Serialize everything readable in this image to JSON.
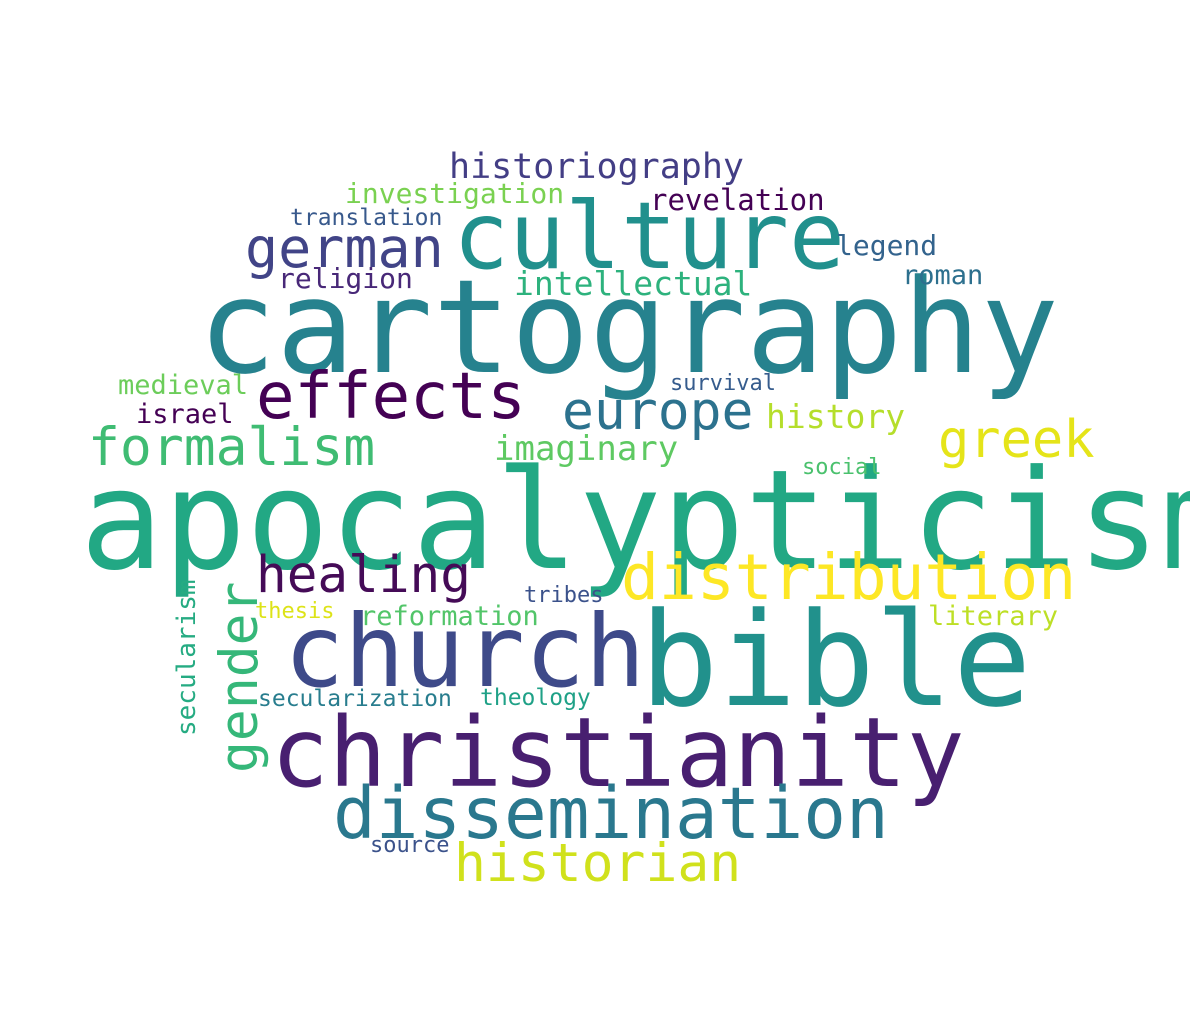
{
  "words": [
    {
      "key": "cartography",
      "text": "cartography",
      "color": "#26828e"
    },
    {
      "key": "apocalypticism",
      "text": "apocalypticism",
      "color": "#22a884"
    },
    {
      "key": "culture",
      "text": "culture",
      "color": "#21908d"
    },
    {
      "key": "bible",
      "text": "bible",
      "color": "#21918c"
    },
    {
      "key": "christianity",
      "text": "christianity",
      "color": "#481f70"
    },
    {
      "key": "church",
      "text": "church",
      "color": "#3e4a89"
    },
    {
      "key": "dissemination",
      "text": "dissemination",
      "color": "#2a788e"
    },
    {
      "key": "distribution",
      "text": "distribution",
      "color": "#fde725"
    },
    {
      "key": "effects",
      "text": "effects",
      "color": "#440154"
    },
    {
      "key": "historian",
      "text": "historian",
      "color": "#d0e11c"
    },
    {
      "key": "europe",
      "text": "europe",
      "color": "#2c728e"
    },
    {
      "key": "formalism",
      "text": "formalism",
      "color": "#3fbc73"
    },
    {
      "key": "german",
      "text": "german",
      "color": "#414487"
    },
    {
      "key": "healing",
      "text": "healing",
      "color": "#450b57"
    },
    {
      "key": "greek",
      "text": "greek",
      "color": "#e5e419"
    },
    {
      "key": "gender",
      "text": "gender",
      "color": "#35b779"
    },
    {
      "key": "historiography",
      "text": "historiography",
      "color": "#433e85"
    },
    {
      "key": "intellectual",
      "text": "intellectual",
      "color": "#2db27d"
    },
    {
      "key": "imaginary",
      "text": "imaginary",
      "color": "#5ec962"
    },
    {
      "key": "history",
      "text": "history",
      "color": "#b5de2b"
    },
    {
      "key": "revelation",
      "text": "revelation",
      "color": "#440154"
    },
    {
      "key": "investigation",
      "text": "investigation",
      "color": "#7ad151"
    },
    {
      "key": "legend",
      "text": "legend",
      "color": "#33638d"
    },
    {
      "key": "religion",
      "text": "religion",
      "color": "#482878"
    },
    {
      "key": "roman",
      "text": "roman",
      "color": "#2d708e"
    },
    {
      "key": "translation",
      "text": "translation",
      "color": "#38598c"
    },
    {
      "key": "medieval",
      "text": "medieval",
      "color": "#6ccd5a"
    },
    {
      "key": "israel",
      "text": "israel",
      "color": "#440154"
    },
    {
      "key": "survival",
      "text": "survival",
      "color": "#365c8d"
    },
    {
      "key": "social",
      "text": "social",
      "color": "#4ac16d"
    },
    {
      "key": "reformation",
      "text": "reformation",
      "color": "#52c569"
    },
    {
      "key": "tribes",
      "text": "tribes",
      "color": "#3b528b"
    },
    {
      "key": "literary",
      "text": "literary",
      "color": "#bddf26"
    },
    {
      "key": "thesis",
      "text": "thesis",
      "color": "#dde318"
    },
    {
      "key": "secularism",
      "text": "secularism",
      "color": "#25ab82"
    },
    {
      "key": "secularization",
      "text": "secularization",
      "color": "#287d8e"
    },
    {
      "key": "theology",
      "text": "theology",
      "color": "#1fa187"
    },
    {
      "key": "source",
      "text": "source",
      "color": "#3b528b"
    }
  ]
}
